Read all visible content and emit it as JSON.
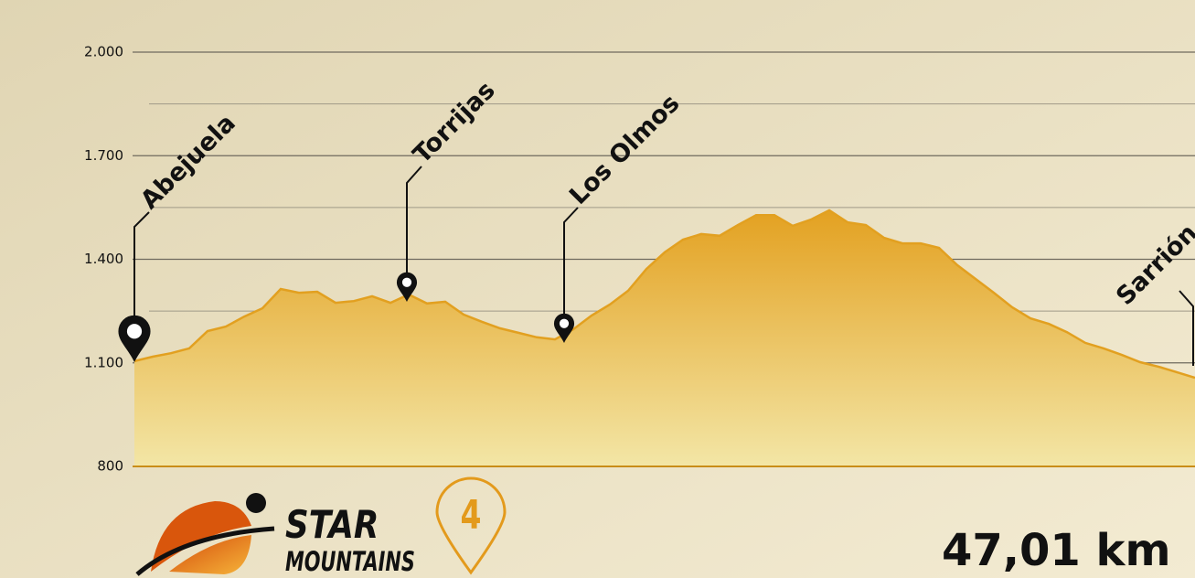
{
  "chart_data": {
    "type": "area",
    "values": [
      1105,
      1118,
      1128,
      1142,
      1192,
      1205,
      1234,
      1258,
      1314,
      1303,
      1306,
      1274,
      1279,
      1293,
      1274,
      1298,
      1272,
      1277,
      1240,
      1219,
      1200,
      1187,
      1174,
      1168,
      1197,
      1237,
      1269,
      1309,
      1372,
      1420,
      1457,
      1473,
      1468,
      1499,
      1528,
      1528,
      1497,
      1515,
      1542,
      1507,
      1499,
      1462,
      1446,
      1446,
      1433,
      1383,
      1343,
      1303,
      1261,
      1229,
      1213,
      1189,
      1158,
      1142,
      1123,
      1102,
      1089,
      1073,
      1057
    ],
    "color": "#e2a020",
    "ylim": [
      800,
      2000
    ],
    "yticks": [
      {
        "value": 800,
        "label": "800"
      },
      {
        "value": 1100,
        "label": "1.100"
      },
      {
        "value": 1400,
        "label": "1.400"
      },
      {
        "value": 1700,
        "label": "1.700"
      },
      {
        "value": 2000,
        "label": "2.000"
      }
    ],
    "minor_yticks": [
      950,
      1250,
      1550,
      1850
    ],
    "grid": true,
    "annotations": [
      "Abejuela",
      "Torrijas",
      "Los Olmos",
      "Sarrión"
    ]
  },
  "logo": {
    "line1": "STAR",
    "line2": "MOUNTAINS",
    "stage": "4"
  },
  "distance": "47,01 km"
}
